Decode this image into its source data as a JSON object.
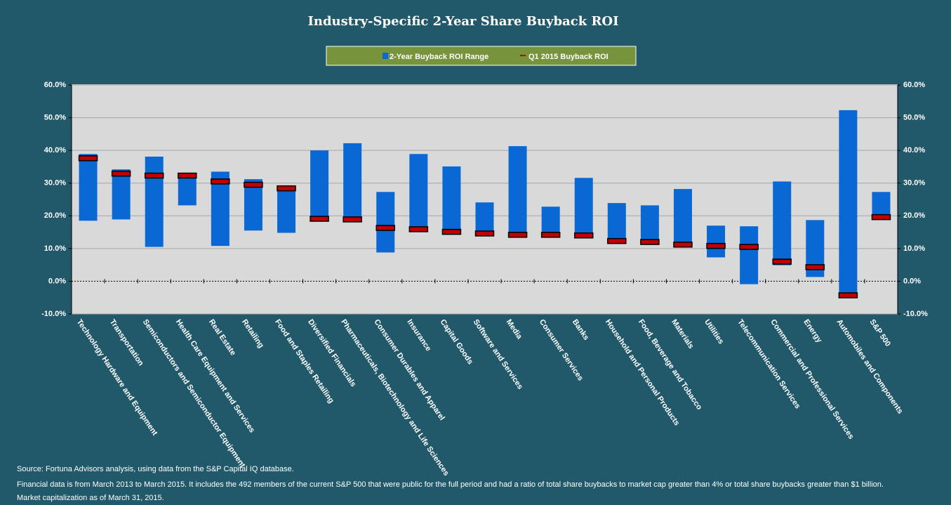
{
  "chart_data": {
    "type": "range-bar",
    "title": "Industry-Specific 2-Year Share Buyback ROI",
    "categories": [
      "Technology Hardware and Equipment",
      "Transportation",
      "Semiconductors and Semiconductor Equipment",
      "Health Care Equipment and Services",
      "Real Estate",
      "Retailing",
      "Food and Staples Retailing",
      "Diversified Financials",
      "Pharmaceuticals, Biotechnology and Life Sciences",
      "Consumer Durables and Apparel",
      "Insurance",
      "Capital Goods",
      "Software and Services",
      "Media",
      "Consumer Services",
      "Banks",
      "Household and Personal Products",
      "Food, Beverage and Tobacco",
      "Materials",
      "Utilities",
      "Telecommunication Services",
      "Commercial and Professional Services",
      "Energy",
      "Automobiles and Components",
      "S&P 500"
    ],
    "series": [
      {
        "name": "2-Year Buyback ROI Range",
        "color": "#0a68d4",
        "low": [
          18.5,
          18.9,
          10.5,
          23.2,
          10.8,
          15.5,
          14.8,
          18.5,
          18.3,
          8.8,
          15.5,
          15.3,
          14.0,
          13.5,
          13.5,
          13.3,
          11.6,
          11.4,
          10.3,
          7.3,
          -0.9,
          4.9,
          1.3,
          -4.9,
          18.9
        ],
        "high": [
          38.9,
          34.2,
          38.1,
          32.9,
          33.5,
          31.2,
          29.0,
          40.0,
          42.2,
          27.3,
          38.9,
          35.1,
          24.1,
          41.3,
          22.8,
          31.6,
          23.9,
          23.2,
          28.2,
          17.0,
          16.8,
          30.5,
          18.7,
          52.3,
          27.3
        ]
      },
      {
        "name": "Q1 2015 Buyback ROI",
        "color": "#c00000",
        "values": [
          37.6,
          32.9,
          32.3,
          32.3,
          30.5,
          29.5,
          28.4,
          19.1,
          18.9,
          16.3,
          15.9,
          15.1,
          14.6,
          14.2,
          14.2,
          14.0,
          12.3,
          12.0,
          11.2,
          10.8,
          10.5,
          6.0,
          4.3,
          -4.3,
          19.6
        ]
      }
    ],
    "ylim": [
      -10,
      60
    ],
    "yticks": [
      {
        "value": -10,
        "label": "-10.0%"
      },
      {
        "value": 0,
        "label": "0.0%"
      },
      {
        "value": 10,
        "label": "10.0%"
      },
      {
        "value": 20,
        "label": "20.0%"
      },
      {
        "value": 30,
        "label": "30.0%"
      },
      {
        "value": 40,
        "label": "40.0%"
      },
      {
        "value": 50,
        "label": "50.0%"
      },
      {
        "value": 60,
        "label": "60.0%"
      }
    ],
    "y2lim": [
      -10,
      60
    ],
    "y2ticks": [
      {
        "value": -10,
        "label": "-10.0%"
      },
      {
        "value": 0,
        "label": "0.0%"
      },
      {
        "value": 10,
        "label": "10.0%"
      },
      {
        "value": 20,
        "label": "20.0%"
      },
      {
        "value": 30,
        "label": "30.0%"
      },
      {
        "value": 40,
        "label": "40.0%"
      },
      {
        "value": 50,
        "label": "50.0%"
      },
      {
        "value": 60,
        "label": "60.0%"
      }
    ],
    "grid": true,
    "legend": "top",
    "notes": [
      "Source: Fortuna Advisors analysis, using data from the S&P Capital IQ database.",
      "Financial data is from March 2013 to March 2015. It includes the 492 members of the current S&P 500 that were public for the full period and had a ratio of total share buybacks to market cap greater than 4% or total share buybacks greater than $1 billion.",
      "Market capitalization as of March 31, 2015."
    ]
  }
}
